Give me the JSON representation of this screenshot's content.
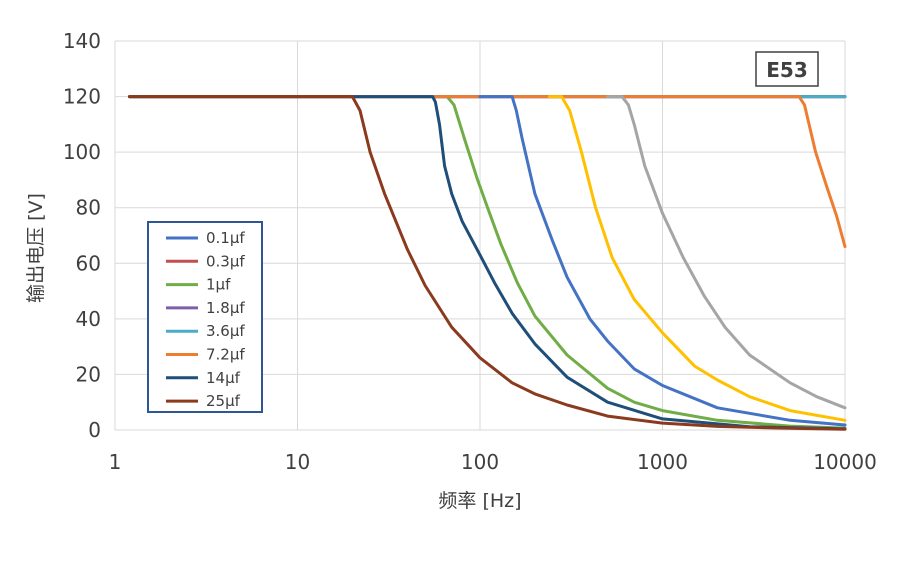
{
  "chart_data": {
    "type": "line",
    "tag": "E53",
    "xlabel": "频率 [Hz]",
    "ylabel": "输出电压 [V]",
    "x_scale": "log",
    "xlim": [
      1,
      10000
    ],
    "ylim": [
      0,
      140
    ],
    "x_ticks": [
      1,
      10,
      100,
      1000,
      10000
    ],
    "x_tick_labels": [
      "1",
      "10",
      "100",
      "1000",
      "10000"
    ],
    "y_ticks": [
      0,
      20,
      40,
      60,
      80,
      100,
      120,
      140
    ],
    "y_tick_labels": [
      "0",
      "20",
      "40",
      "60",
      "80",
      "100",
      "120",
      "140"
    ],
    "grid": true,
    "legend_position": "left",
    "series": [
      {
        "name": "0.1μf",
        "color": "#4472C4",
        "points": [
          [
            1.2,
            120
          ],
          [
            10000,
            120
          ]
        ]
      },
      {
        "name": "0.3μf",
        "color": "#C0504D",
        "points": [
          [
            1.2,
            120
          ],
          [
            10000,
            120
          ]
        ]
      },
      {
        "name": "1μf",
        "color": "#70AD47",
        "points": [
          [
            1.2,
            120
          ],
          [
            66,
            120
          ],
          [
            72,
            117
          ],
          [
            82,
            105
          ],
          [
            97,
            90
          ],
          [
            110,
            80
          ],
          [
            130,
            67
          ],
          [
            160,
            53
          ],
          [
            200,
            41
          ],
          [
            300,
            27
          ],
          [
            500,
            15
          ],
          [
            700,
            10
          ],
          [
            1000,
            7
          ],
          [
            2000,
            3.5
          ],
          [
            5000,
            1.4
          ],
          [
            10000,
            0.7
          ]
        ]
      },
      {
        "name": "1.8μf",
        "color": "#7F5FA8",
        "points": [
          [
            1.2,
            120
          ],
          [
            10000,
            120
          ]
        ]
      },
      {
        "name": "3.6μf",
        "color": "#4BACC6",
        "points": [
          [
            1.2,
            120
          ],
          [
            10000,
            120
          ]
        ]
      },
      {
        "name": "7.2μf",
        "color": "#ED7D31",
        "points": [
          [
            1.2,
            120
          ],
          [
            5600,
            120
          ],
          [
            6000,
            117
          ],
          [
            6900,
            100
          ],
          [
            8000,
            87
          ],
          [
            9000,
            77
          ],
          [
            10000,
            66
          ]
        ]
      },
      {
        "name": "14μf",
        "color": "#1F4E79",
        "points": [
          [
            1.2,
            120
          ],
          [
            55,
            120
          ],
          [
            57,
            118
          ],
          [
            60,
            110
          ],
          [
            64,
            95
          ],
          [
            70,
            85
          ],
          [
            80,
            75
          ],
          [
            100,
            63
          ],
          [
            120,
            53
          ],
          [
            150,
            42
          ],
          [
            200,
            31
          ],
          [
            300,
            19
          ],
          [
            500,
            10
          ],
          [
            1000,
            4
          ],
          [
            3000,
            1.2
          ],
          [
            10000,
            0.4
          ]
        ]
      },
      {
        "name": "25μf",
        "color": "#8B3A1E",
        "points": [
          [
            1.2,
            120
          ],
          [
            20,
            120
          ],
          [
            22,
            115
          ],
          [
            25,
            100
          ],
          [
            30,
            85
          ],
          [
            40,
            65
          ],
          [
            50,
            52
          ],
          [
            70,
            37
          ],
          [
            100,
            26
          ],
          [
            150,
            17
          ],
          [
            200,
            13
          ],
          [
            300,
            9
          ],
          [
            500,
            5
          ],
          [
            1000,
            2.5
          ],
          [
            2000,
            1.3
          ],
          [
            5000,
            0.6
          ],
          [
            10000,
            0.3
          ]
        ]
      },
      {
        "name": "",
        "color": "#4472C4",
        "points": [
          [
            100,
            120
          ],
          [
            150,
            120
          ],
          [
            158,
            115
          ],
          [
            170,
            105
          ],
          [
            200,
            85
          ],
          [
            250,
            68
          ],
          [
            300,
            55
          ],
          [
            400,
            40
          ],
          [
            500,
            32
          ],
          [
            700,
            22
          ],
          [
            1000,
            16
          ],
          [
            2000,
            8
          ],
          [
            5000,
            3.5
          ],
          [
            10000,
            1.8
          ]
        ]
      },
      {
        "name": "",
        "color": "#FFC000",
        "points": [
          [
            240,
            120
          ],
          [
            280,
            120
          ],
          [
            310,
            115
          ],
          [
            360,
            100
          ],
          [
            430,
            80
          ],
          [
            530,
            62
          ],
          [
            700,
            47
          ],
          [
            1000,
            35
          ],
          [
            1500,
            23
          ],
          [
            2000,
            18
          ],
          [
            3000,
            12
          ],
          [
            5000,
            7
          ],
          [
            10000,
            3.5
          ]
        ]
      },
      {
        "name": "",
        "color": "#A5A5A5",
        "points": [
          [
            500,
            120
          ],
          [
            600,
            120
          ],
          [
            650,
            117
          ],
          [
            700,
            110
          ],
          [
            800,
            95
          ],
          [
            1000,
            78
          ],
          [
            1300,
            62
          ],
          [
            1700,
            48
          ],
          [
            2200,
            37
          ],
          [
            3000,
            27
          ],
          [
            5000,
            17
          ],
          [
            7000,
            12
          ],
          [
            10000,
            8
          ]
        ]
      }
    ]
  }
}
